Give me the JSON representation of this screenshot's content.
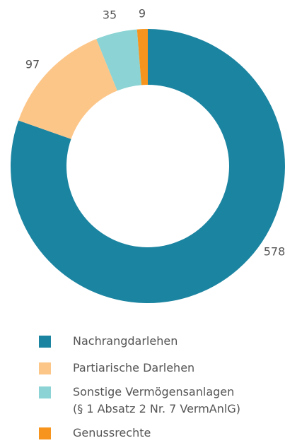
{
  "chart_data": {
    "type": "donut",
    "series": [
      {
        "name": "Nachrangdarlehen",
        "color": "#1b84a1",
        "values": [
          578
        ]
      },
      {
        "name": "Partiarische Darlehen",
        "color": "#fdc689",
        "values": [
          97
        ]
      },
      {
        "name": "Sonstige Vermögensanlagen\n(§ 1 Absatz 2 Nr. 7 VermAnlG)",
        "color": "#8bd3d4",
        "values": [
          35
        ]
      },
      {
        "name": "Genussrechte",
        "color": "#f7941d",
        "values": [
          9
        ]
      }
    ]
  }
}
